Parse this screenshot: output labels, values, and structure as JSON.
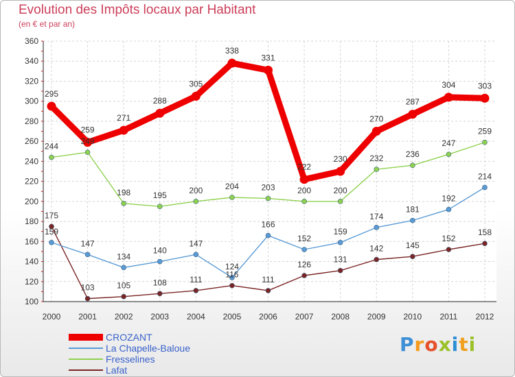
{
  "header": {
    "title": "Evolution des Impôts locaux par Habitant",
    "subtitle": "(en € et par an)"
  },
  "brand": {
    "name": "Proxiti",
    "letters": [
      "P",
      "r",
      "o",
      "x",
      "i",
      "t",
      "i"
    ],
    "letter_colors": [
      "#3d8fd6",
      "#f59a1c",
      "#e5512b",
      "#9bc12a",
      "#2f8fd4",
      "#f0a020",
      "#9bc12a"
    ]
  },
  "chart_data": {
    "type": "line",
    "title": "Evolution des Impôts locaux par Habitant",
    "subtitle": "(en € et par an)",
    "xlabel": "",
    "ylabel": "",
    "x": [
      "2000",
      "2001",
      "2002",
      "2003",
      "2004",
      "2005",
      "2006",
      "2007",
      "2008",
      "2009",
      "2010",
      "2011",
      "2012"
    ],
    "ylim": [
      100,
      360
    ],
    "yticks": [
      100,
      120,
      140,
      160,
      180,
      200,
      220,
      240,
      260,
      280,
      300,
      320,
      340,
      360
    ],
    "grid": true,
    "legend_position": "bottom-left",
    "series": [
      {
        "name": "CROZANT",
        "color": "#ee0000",
        "values": [
          295,
          259,
          271,
          288,
          305,
          338,
          331,
          222,
          230,
          270,
          287,
          304,
          303
        ],
        "labels": [
          "295",
          "259",
          "271",
          "288",
          "305",
          "338",
          "331",
          "222",
          "230",
          "270",
          "287",
          "304",
          "303"
        ]
      },
      {
        "name": "La Chapelle-Baloue",
        "color": "#5a9bd5",
        "values": [
          159,
          147,
          134,
          140,
          147,
          124,
          166,
          152,
          159,
          174,
          181,
          192,
          214
        ],
        "labels": [
          "159",
          "147",
          "134",
          "140",
          "147",
          "124",
          "166",
          "152",
          "159",
          "174",
          "181",
          "192",
          "214"
        ]
      },
      {
        "name": "Fresselines",
        "color": "#8fd14f",
        "values": [
          244,
          249,
          198,
          195,
          200,
          204,
          203,
          200,
          200,
          232,
          236,
          247,
          259
        ],
        "labels": [
          "244",
          "249",
          "198",
          "195",
          "200",
          "204",
          "203",
          "200",
          "200",
          "232",
          "236",
          "247",
          "259"
        ]
      },
      {
        "name": "Lafat",
        "color": "#7a2424",
        "values": [
          175,
          103,
          105,
          108,
          111,
          116,
          111,
          126,
          131,
          142,
          145,
          152,
          158
        ],
        "labels": [
          "175",
          "103",
          "105",
          "108",
          "111",
          "116",
          "111",
          "126",
          "131",
          "142",
          "145",
          "152",
          "158"
        ]
      }
    ]
  }
}
